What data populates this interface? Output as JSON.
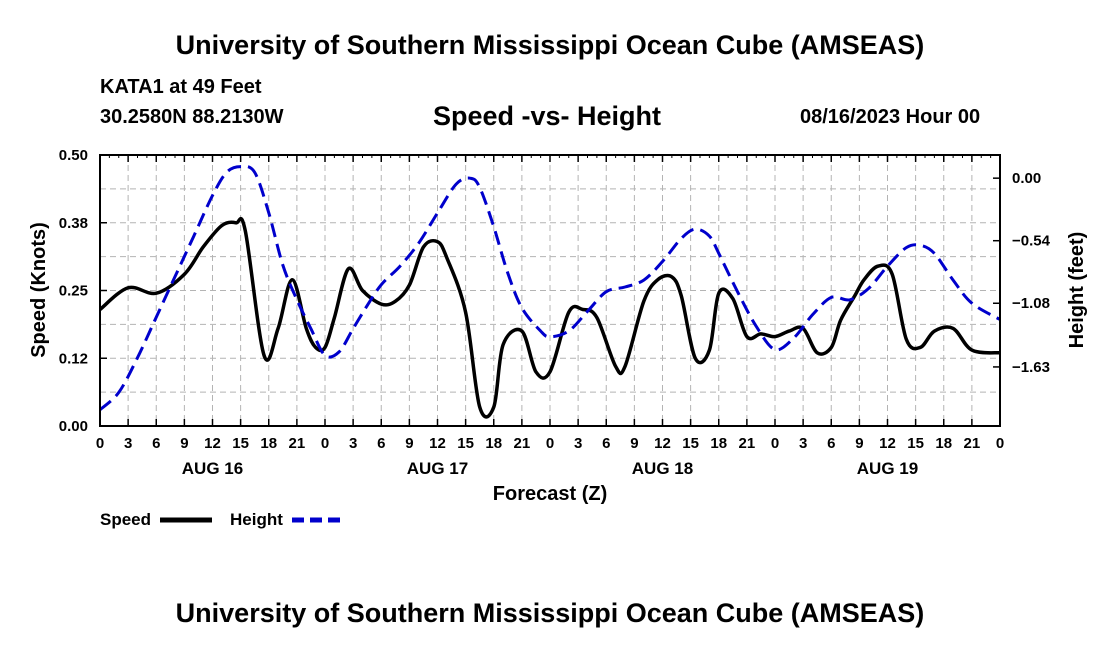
{
  "header": {
    "title": "University of Southern Mississippi Ocean Cube (AMSEAS)",
    "station": "KATA1 at 49 Feet",
    "coords": "30.2580N  88.2130W",
    "chart_title": "Speed -vs- Height",
    "datetime": "08/16/2023 Hour 00"
  },
  "footer": {
    "title": "University of Southern Mississippi Ocean Cube (AMSEAS)"
  },
  "colors": {
    "speed": "#000000",
    "height": "#0000cc",
    "grid": "#b4b4b4"
  },
  "chart_data": {
    "type": "line",
    "title": "Speed -vs- Height",
    "xlabel": "Forecast (Z)",
    "ylabel": "Speed (Knots)",
    "y2label": "Height (feet)",
    "xlim": [
      0,
      96
    ],
    "ylim": [
      0,
      0.5
    ],
    "y2lim": [
      -2.14,
      0.2
    ],
    "y_ticks": [
      "0.00",
      "0.12",
      "0.25",
      "0.38",
      "0.50"
    ],
    "y_tick_values": [
      0,
      0.125,
      0.25,
      0.375,
      0.5
    ],
    "y2_ticks": [
      "0.00",
      "−0.54",
      "−1.08",
      "−1.63"
    ],
    "y2_tick_values": [
      0,
      -0.54,
      -1.08,
      -1.63
    ],
    "x_tick_labels": [
      "0",
      "3",
      "6",
      "9",
      "12",
      "15",
      "18",
      "21",
      "0",
      "3",
      "6",
      "9",
      "12",
      "15",
      "18",
      "21",
      "0",
      "3",
      "6",
      "9",
      "12",
      "15",
      "18",
      "21",
      "0",
      "3",
      "6",
      "9",
      "12",
      "15",
      "18",
      "21",
      "0"
    ],
    "day_labels": [
      {
        "label": "AUG 16",
        "hour": 12
      },
      {
        "label": "AUG 17",
        "hour": 36
      },
      {
        "label": "AUG 18",
        "hour": 60
      },
      {
        "label": "AUG 19",
        "hour": 84
      }
    ],
    "grid": true,
    "legend": [
      {
        "name": "Speed",
        "style": "solid"
      },
      {
        "name": "Height",
        "style": "dashed"
      }
    ],
    "series": [
      {
        "name": "Speed",
        "axis": "left",
        "x": [
          0,
          3,
          6,
          9,
          11,
          13,
          14.5,
          15.5,
          17.5,
          19,
          20.5,
          22,
          23,
          24,
          25,
          26.5,
          28,
          30,
          31.5,
          33,
          34.5,
          36,
          37,
          39,
          40.5,
          42,
          43,
          45,
          46.5,
          48,
          50,
          51.5,
          53,
          55,
          56,
          58,
          59.5,
          61,
          62,
          63.5,
          65,
          66,
          67.5,
          69,
          70.5,
          72,
          73.5,
          75,
          76.5,
          78,
          79,
          80.5,
          81.5,
          83,
          84.5,
          86,
          87.5,
          89,
          91,
          93,
          96
        ],
        "values": [
          0.215,
          0.255,
          0.245,
          0.28,
          0.33,
          0.37,
          0.375,
          0.36,
          0.13,
          0.18,
          0.27,
          0.18,
          0.145,
          0.145,
          0.2,
          0.29,
          0.25,
          0.225,
          0.23,
          0.26,
          0.33,
          0.34,
          0.31,
          0.21,
          0.035,
          0.035,
          0.15,
          0.175,
          0.1,
          0.1,
          0.21,
          0.215,
          0.2,
          0.11,
          0.11,
          0.23,
          0.27,
          0.275,
          0.24,
          0.125,
          0.14,
          0.245,
          0.235,
          0.165,
          0.17,
          0.165,
          0.175,
          0.18,
          0.135,
          0.145,
          0.195,
          0.24,
          0.27,
          0.295,
          0.28,
          0.16,
          0.145,
          0.175,
          0.18,
          0.14,
          0.135
        ]
      },
      {
        "name": "Height",
        "axis": "right",
        "x": [
          0,
          2,
          4,
          6,
          8,
          10,
          12,
          13.5,
          15,
          16.5,
          18,
          19.5,
          21,
          22.5,
          24,
          25.5,
          27,
          28.5,
          30,
          32,
          34,
          36,
          38,
          39.5,
          40.5,
          42,
          43.5,
          45,
          47,
          48,
          50,
          52,
          54,
          56,
          58,
          60,
          62,
          63.5,
          65,
          66,
          68,
          70,
          72,
          74,
          76,
          78,
          80,
          82,
          84,
          86,
          87.5,
          89,
          91,
          93,
          96
        ],
        "values": [
          -2.0,
          -1.85,
          -1.55,
          -1.2,
          -0.85,
          -0.5,
          -0.15,
          0.05,
          0.1,
          0.05,
          -0.3,
          -0.75,
          -1.05,
          -1.3,
          -1.53,
          -1.5,
          -1.3,
          -1.1,
          -0.92,
          -0.76,
          -0.56,
          -0.3,
          -0.05,
          0.0,
          -0.08,
          -0.42,
          -0.82,
          -1.12,
          -1.32,
          -1.37,
          -1.32,
          -1.15,
          -0.98,
          -0.94,
          -0.88,
          -0.72,
          -0.52,
          -0.44,
          -0.5,
          -0.65,
          -0.98,
          -1.28,
          -1.48,
          -1.38,
          -1.18,
          -1.03,
          -1.05,
          -0.95,
          -0.76,
          -0.6,
          -0.58,
          -0.65,
          -0.88,
          -1.08,
          -1.22
        ]
      }
    ]
  }
}
